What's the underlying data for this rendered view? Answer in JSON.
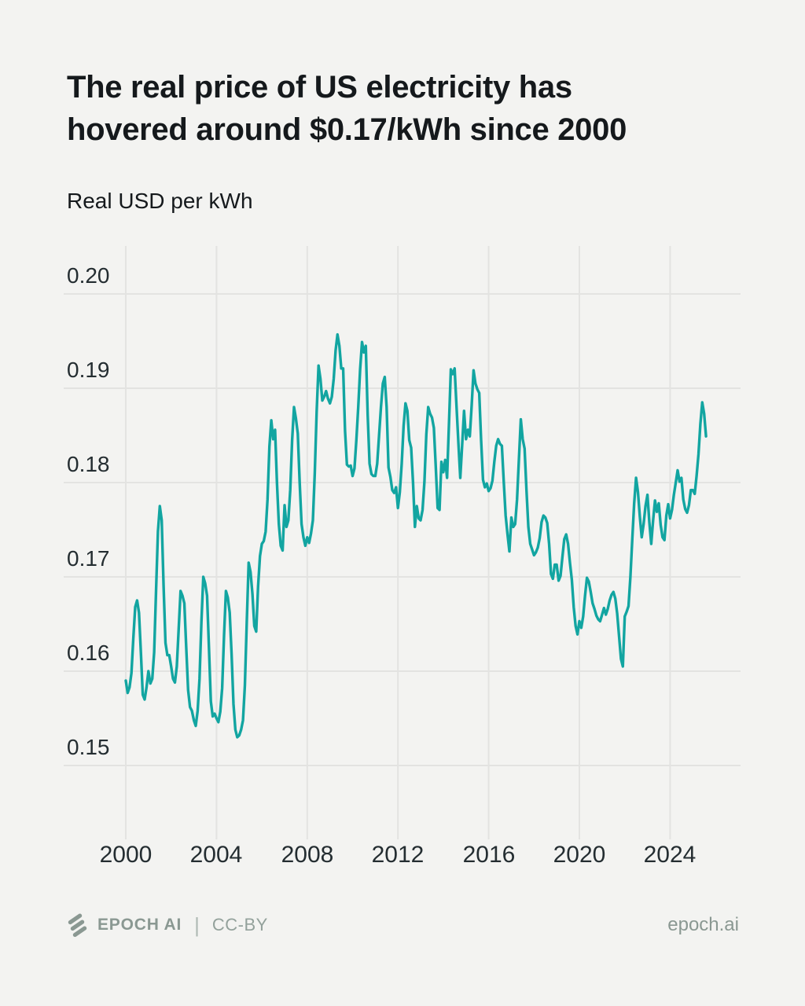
{
  "header": {
    "title_line1": "The real price of US electricity has",
    "title_line2": "hovered around $0.17/kWh since 2000",
    "axis_title": "Real USD per kWh"
  },
  "chart_data": {
    "type": "line",
    "title": "The real price of US electricity has hovered around $0.17/kWh since 2000",
    "ylabel": "Real USD per kWh",
    "frequency": "monthly",
    "start": "2000-01",
    "end": "2025-08",
    "grid": true,
    "legend": "none",
    "line_color": "#12a5a1",
    "x_ticks": [
      2000,
      2004,
      2008,
      2012,
      2016,
      2020,
      2024
    ],
    "x_tick_labels": [
      "2000",
      "2004",
      "2008",
      "2012",
      "2016",
      "2020",
      "2024"
    ],
    "y_ticks": [
      0.2,
      0.19,
      0.18,
      0.17,
      0.16,
      0.15
    ],
    "y_tick_labels": [
      "0.20",
      "0.19",
      "0.18",
      "0.17",
      "0.16",
      "0.15"
    ],
    "ylim": [
      0.142,
      0.205
    ],
    "xlim": [
      1999.8,
      2027.1
    ],
    "values": [
      0.159,
      0.1577,
      0.1583,
      0.1598,
      0.1635,
      0.1668,
      0.1675,
      0.1662,
      0.162,
      0.1575,
      0.157,
      0.1583,
      0.16,
      0.1587,
      0.1592,
      0.162,
      0.1685,
      0.1748,
      0.1775,
      0.176,
      0.169,
      0.163,
      0.1617,
      0.1617,
      0.1605,
      0.1592,
      0.1588,
      0.1605,
      0.1645,
      0.1685,
      0.168,
      0.1672,
      0.1625,
      0.158,
      0.1562,
      0.1558,
      0.1548,
      0.1542,
      0.1558,
      0.1592,
      0.1652,
      0.17,
      0.1693,
      0.168,
      0.1625,
      0.1568,
      0.1552,
      0.1555,
      0.155,
      0.1546,
      0.1557,
      0.1582,
      0.1638,
      0.1685,
      0.1678,
      0.1662,
      0.1618,
      0.1565,
      0.1538,
      0.153,
      0.1532,
      0.1538,
      0.1548,
      0.1585,
      0.1652,
      0.1715,
      0.1705,
      0.1682,
      0.1648,
      0.1642,
      0.169,
      0.1722,
      0.1735,
      0.1738,
      0.1748,
      0.1782,
      0.1838,
      0.1866,
      0.1846,
      0.1856,
      0.18,
      0.1756,
      0.1733,
      0.1728,
      0.1776,
      0.1753,
      0.176,
      0.1792,
      0.1845,
      0.188,
      0.1868,
      0.1852,
      0.18,
      0.1756,
      0.1742,
      0.1733,
      0.1742,
      0.1736,
      0.1746,
      0.176,
      0.181,
      0.1875,
      0.1924,
      0.191,
      0.1887,
      0.1891,
      0.1897,
      0.1889,
      0.1884,
      0.1891,
      0.191,
      0.194,
      0.1957,
      0.1945,
      0.1921,
      0.1921,
      0.1855,
      0.1819,
      0.1817,
      0.1818,
      0.1807,
      0.1815,
      0.1845,
      0.188,
      0.192,
      0.1949,
      0.1938,
      0.1945,
      0.1872,
      0.182,
      0.1809,
      0.1807,
      0.1807,
      0.182,
      0.185,
      0.188,
      0.1905,
      0.1912,
      0.188,
      0.1816,
      0.1806,
      0.1792,
      0.1789,
      0.1795,
      0.1773,
      0.179,
      0.182,
      0.186,
      0.1884,
      0.1876,
      0.1845,
      0.1837,
      0.18,
      0.1753,
      0.1775,
      0.1762,
      0.176,
      0.1771,
      0.1801,
      0.1851,
      0.188,
      0.1873,
      0.1869,
      0.1858,
      0.1817,
      0.1773,
      0.1771,
      0.1822,
      0.1811,
      0.1824,
      0.1805,
      0.1862,
      0.192,
      0.1915,
      0.1921,
      0.1881,
      0.1842,
      0.1805,
      0.184,
      0.1876,
      0.1846,
      0.1856,
      0.1849,
      0.1882,
      0.1919,
      0.1905,
      0.1899,
      0.1895,
      0.1845,
      0.1803,
      0.1795,
      0.1799,
      0.1791,
      0.1794,
      0.1802,
      0.1822,
      0.1839,
      0.1846,
      0.1841,
      0.1839,
      0.1801,
      0.1765,
      0.1745,
      0.1727,
      0.1763,
      0.1753,
      0.1756,
      0.1782,
      0.1825,
      0.1867,
      0.1846,
      0.1836,
      0.1792,
      0.1753,
      0.1735,
      0.1729,
      0.1723,
      0.1726,
      0.1731,
      0.1741,
      0.1758,
      0.1765,
      0.1763,
      0.1757,
      0.1735,
      0.1703,
      0.1698,
      0.1713,
      0.1713,
      0.1696,
      0.1701,
      0.1721,
      0.174,
      0.1745,
      0.1735,
      0.1715,
      0.1697,
      0.1668,
      0.1648,
      0.1639,
      0.1653,
      0.1646,
      0.1658,
      0.168,
      0.1699,
      0.1695,
      0.1684,
      0.1672,
      0.1666,
      0.1659,
      0.1655,
      0.1653,
      0.166,
      0.1667,
      0.166,
      0.1666,
      0.1675,
      0.1681,
      0.1684,
      0.1677,
      0.1661,
      0.1637,
      0.1613,
      0.1605,
      0.1658,
      0.1663,
      0.1669,
      0.17,
      0.174,
      0.1778,
      0.1805,
      0.179,
      0.1764,
      0.1742,
      0.1756,
      0.1775,
      0.1787,
      0.1758,
      0.1735,
      0.176,
      0.1781,
      0.1769,
      0.1778,
      0.1755,
      0.1742,
      0.1739,
      0.1765,
      0.1777,
      0.1762,
      0.1771,
      0.1787,
      0.18,
      0.1813,
      0.1801,
      0.1805,
      0.1782,
      0.1772,
      0.1768,
      0.1776,
      0.1792,
      0.1792,
      0.1788,
      0.1807,
      0.183,
      0.1862,
      0.1885,
      0.1873,
      0.1849
    ]
  },
  "footer": {
    "brand": "EPOCH AI",
    "separator": "|",
    "license": "CC-BY",
    "website": "epoch.ai"
  },
  "colors": {
    "background": "#f3f3f1",
    "grid": "#e3e3e1",
    "line": "#12a5a1",
    "text": "#15191c",
    "tick_text": "#242d31",
    "footer_text": "#8a9892"
  }
}
